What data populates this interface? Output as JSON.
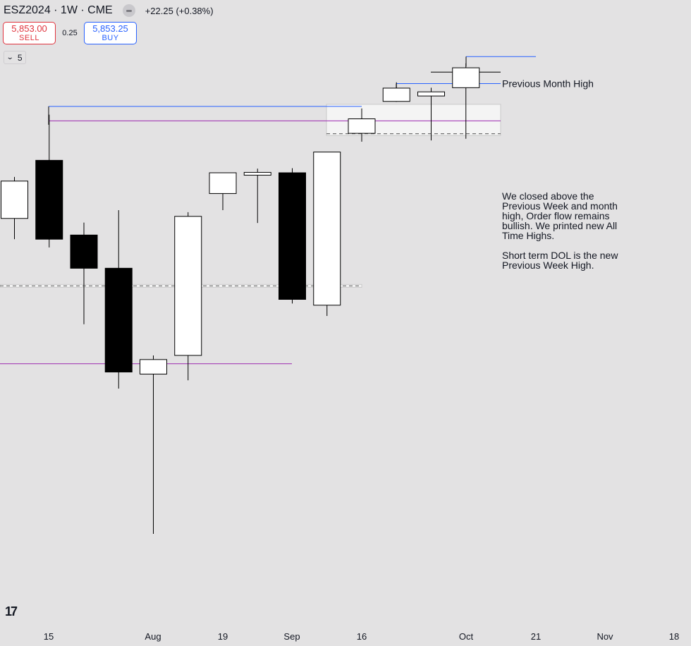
{
  "header": {
    "symbol": "ESZ2024 · 1W · CME",
    "change": "+22.25 (+0.38%)"
  },
  "trade": {
    "sell_price": "5,853.00",
    "sell_label": "SELL",
    "spread": "0.25",
    "buy_price": "5,853.25",
    "buy_label": "BUY"
  },
  "indicator_toggle": {
    "count": "5"
  },
  "logo": {
    "text": "17"
  },
  "chart_data": {
    "type": "candlestick",
    "x_tick_labels": [
      "15",
      "Aug",
      "19",
      "Sep",
      "16",
      "Oct",
      "21",
      "Nov",
      "18"
    ],
    "candles": [
      {
        "o": 5485,
        "h": 5585,
        "l": 5435,
        "c": 5575,
        "color": "white"
      },
      {
        "o": 5625,
        "h": 5735,
        "l": 5415,
        "c": 5435,
        "color": "black"
      },
      {
        "o": 5445,
        "h": 5475,
        "l": 5230,
        "c": 5365,
        "color": "black"
      },
      {
        "o": 5365,
        "h": 5505,
        "l": 5075,
        "c": 5115,
        "color": "black"
      },
      {
        "o": 5110,
        "h": 5155,
        "l": 4725,
        "c": 5145,
        "color": "white"
      },
      {
        "o": 5155,
        "h": 5500,
        "l": 5095,
        "c": 5490,
        "color": "white"
      },
      {
        "o": 5545,
        "h": 5590,
        "l": 5505,
        "c": 5595,
        "color": "white"
      },
      {
        "o": 5590,
        "h": 5605,
        "l": 5474,
        "c": 5596,
        "color": "white"
      },
      {
        "o": 5595,
        "h": 5606,
        "l": 5280,
        "c": 5290,
        "color": "black"
      },
      {
        "o": 5276,
        "h": 5645,
        "l": 5250,
        "c": 5645,
        "color": "white"
      },
      {
        "o": 5725,
        "h": 5750,
        "l": 5670,
        "c": 5690,
        "color": "white"
      },
      {
        "o": 5767,
        "h": 5813,
        "l": 5777,
        "c": 5799,
        "color": "white"
      },
      {
        "o": 5780,
        "h": 5800,
        "l": 5673,
        "c": 5790,
        "color": "white"
      },
      {
        "o": 5800,
        "h": 5859,
        "l": 5677,
        "c": 5848,
        "color": "white"
      }
    ],
    "levels": [
      {
        "price": 5810,
        "color": "#2962ff",
        "label": "Previous Month High"
      },
      {
        "price": 5755,
        "color": "#2962ff",
        "label": ""
      },
      {
        "price": 5720,
        "color": "#9c27b0",
        "label": ""
      },
      {
        "price": 5135,
        "color": "#9c27b0",
        "label": ""
      },
      {
        "price": 5875,
        "color": "#2962ff",
        "label": ""
      }
    ],
    "annotation": "We closed above the Previous Week and month high, Order flow remains bullish. We printed new All Time Highs. Short term DOL is the new Previous Week High.",
    "grid": false,
    "colors": {
      "bull": "#ffffff",
      "bear": "#000000",
      "blue_line": "#2962ff",
      "purple_line": "#9c27b0",
      "background": "#e3e2e3"
    }
  }
}
